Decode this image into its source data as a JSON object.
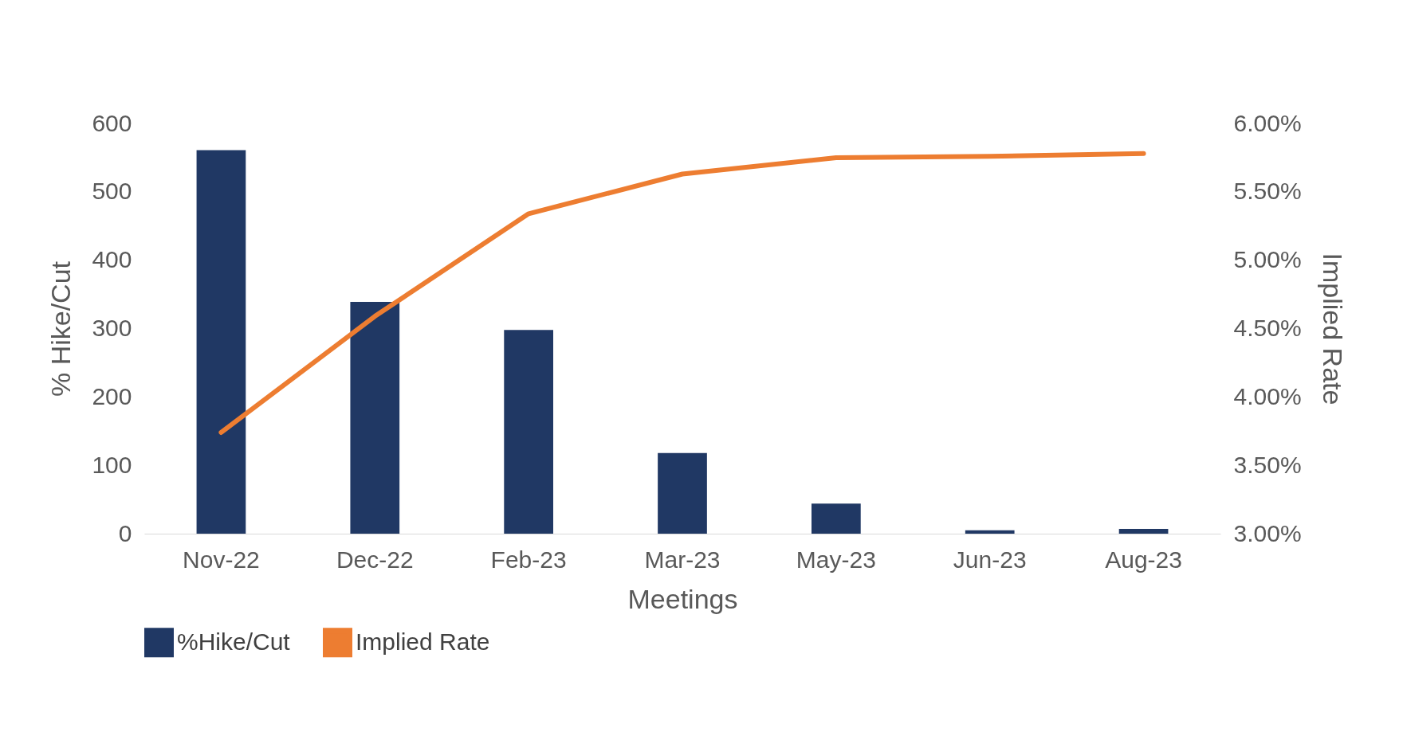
{
  "chart_data": {
    "type": "bar",
    "xlabel": "Meetings",
    "ylabel": "% Hike/Cut",
    "y2label": "Implied Rate",
    "categories": [
      "Nov-22",
      "Dec-22",
      "Feb-23",
      "Mar-23",
      "May-23",
      "Jun-23",
      "Aug-23"
    ],
    "series": [
      {
        "name": "%Hike/Cut",
        "color": "#203864",
        "values": [
          561,
          339,
          298,
          118,
          44,
          5,
          7
        ]
      },
      {
        "name": "Implied Rate",
        "type": "line",
        "axis": "y2",
        "color": "#ed7d31",
        "values": [
          3.74,
          4.59,
          5.34,
          5.63,
          5.75,
          5.76,
          5.78
        ]
      }
    ],
    "ylim": [
      0,
      600
    ],
    "yticks": [
      0,
      100,
      200,
      300,
      400,
      500,
      600
    ],
    "y2lim": [
      3,
      6
    ],
    "y2ticks": [
      {
        "value": 3,
        "label": "3.00%"
      },
      {
        "value": 3.5,
        "label": "3.50%"
      },
      {
        "value": 4,
        "label": "4.00%"
      },
      {
        "value": 4.5,
        "label": "4.50%"
      },
      {
        "value": 5,
        "label": "5.00%"
      },
      {
        "value": 5.5,
        "label": "5.50%"
      },
      {
        "value": 6,
        "label": "6.00%"
      }
    ],
    "grid": false,
    "legend": "bottom left",
    "marker": "none",
    "line_style": "solid"
  }
}
